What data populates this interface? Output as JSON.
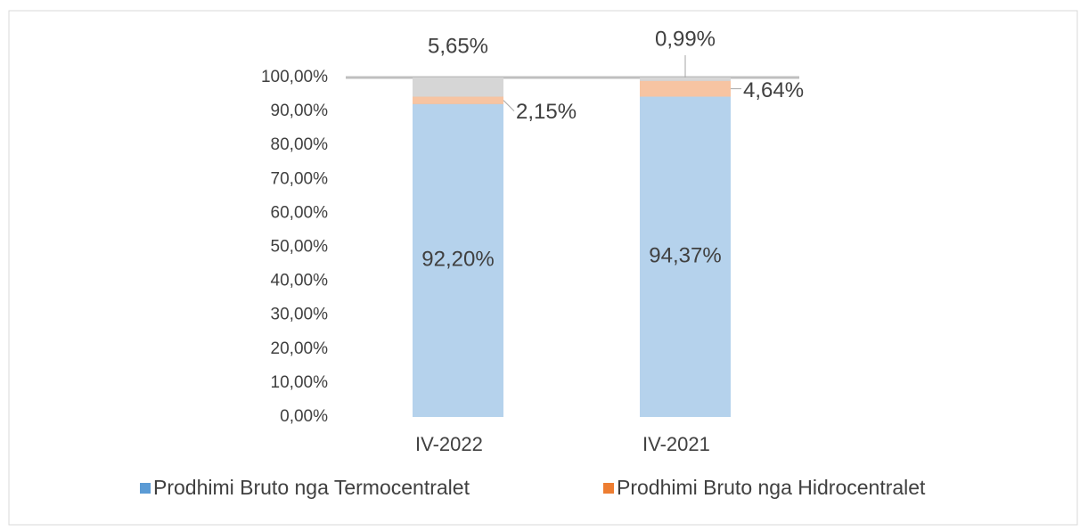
{
  "chart_data": {
    "type": "stacked_bar",
    "categories": [
      "IV-2022",
      "IV-2021"
    ],
    "series": [
      {
        "name": "Prodhimi Bruto nga Termocentralet",
        "color": "#5b9bd5",
        "values": [
          92.2,
          94.37
        ],
        "value_labels": [
          "92,20%",
          "94,37%"
        ]
      },
      {
        "name": "Prodhimi Bruto nga Hidrocentralet",
        "color": "#ed7d31",
        "values": [
          2.15,
          4.64
        ],
        "value_labels": [
          "2,15%",
          "4,64%"
        ]
      },
      {
        "name": null,
        "color": "#a5a5a5",
        "values": [
          5.65,
          0.99
        ],
        "value_labels": [
          "5,65%",
          "0,99%"
        ]
      }
    ],
    "ylim": [
      0,
      100
    ],
    "yticks": [
      {
        "value": 0,
        "label": "0,00%"
      },
      {
        "value": 10,
        "label": "10,00%"
      },
      {
        "value": 20,
        "label": "20,00%"
      },
      {
        "value": 30,
        "label": "30,00%"
      },
      {
        "value": 40,
        "label": "40,00%"
      },
      {
        "value": 50,
        "label": "50,00%"
      },
      {
        "value": 60,
        "label": "60,00%"
      },
      {
        "value": 70,
        "label": "70,00%"
      },
      {
        "value": 80,
        "label": "80,00%"
      },
      {
        "value": 90,
        "label": "90,00%"
      },
      {
        "value": 100,
        "label": "100,00%"
      }
    ],
    "grid": false,
    "legend": "bottom"
  }
}
